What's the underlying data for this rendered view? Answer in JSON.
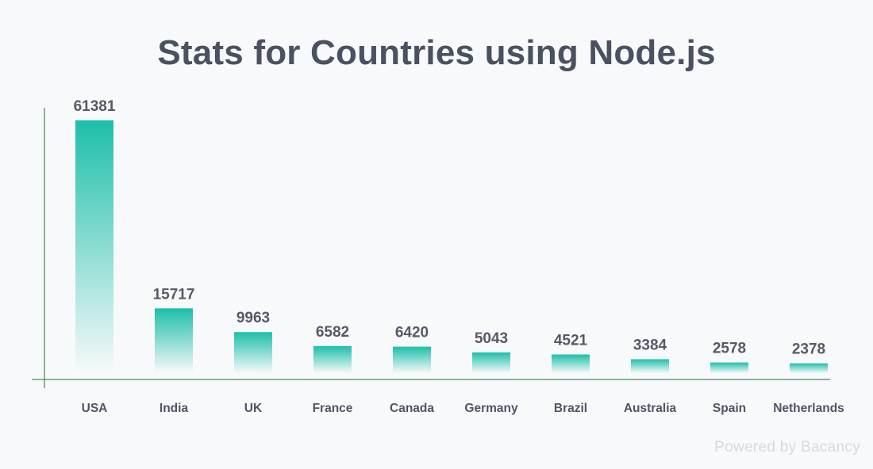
{
  "chart_data": {
    "type": "bar",
    "title": "Stats for Countries using Node.js",
    "categories": [
      "USA",
      "India",
      "UK",
      "France",
      "Canada",
      "Germany",
      "Brazil",
      "Australia",
      "Spain",
      "Netherlands"
    ],
    "values": [
      61381,
      15717,
      9963,
      6582,
      6420,
      5043,
      4521,
      3384,
      2578,
      2378
    ],
    "xlabel": "",
    "ylabel": "",
    "ylim": [
      0,
      65000
    ],
    "grid": false,
    "legend": "none",
    "data_labels": true,
    "colors": {
      "bar": "#1dbfaa",
      "axis": "#1f6f2f",
      "title": "#4a5160",
      "label": "#555a66"
    }
  },
  "footer": {
    "text": "Powered by Bacancy"
  }
}
